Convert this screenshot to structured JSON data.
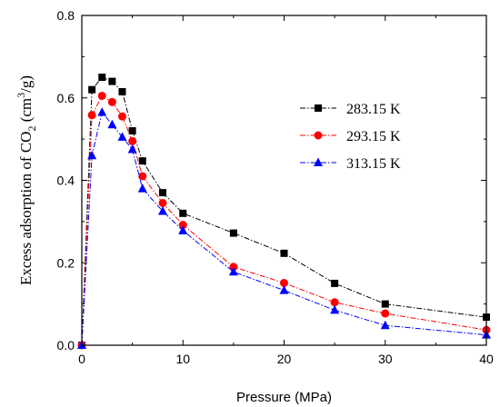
{
  "chart_data": {
    "type": "line",
    "xlabel": "Pressure (MPa)",
    "ylabel": "Excess adsorption of CO2 (cm3/g)",
    "ylabel_parts": {
      "prefix": "Excess adsorption of CO",
      "sub": "2",
      "mid": " (cm",
      "sup": "3",
      "suffix": "/g)"
    },
    "xlim": [
      0,
      40
    ],
    "ylim": [
      0.0,
      0.8
    ],
    "xticks": [
      0,
      10,
      20,
      30,
      40
    ],
    "yticks": [
      0.0,
      0.2,
      0.4,
      0.6,
      0.8
    ],
    "ytick_labels": [
      "0.0",
      "0.2",
      "0.4",
      "0.6",
      "0.8"
    ],
    "xtick_labels": [
      "0",
      "10",
      "20",
      "30",
      "40"
    ],
    "legend_position": "upper-right",
    "grid": false,
    "x": [
      0,
      1,
      2,
      3,
      4,
      5,
      6,
      8,
      10,
      15,
      20,
      25,
      30,
      40
    ],
    "series": [
      {
        "name": "283.15 K",
        "color": "#000000",
        "marker": "square",
        "values": [
          0.0,
          0.62,
          0.65,
          0.64,
          0.615,
          0.52,
          0.447,
          0.37,
          0.32,
          0.272,
          0.223,
          0.15,
          0.1,
          0.068
        ]
      },
      {
        "name": "293.15 K",
        "color": "#ff0000",
        "marker": "circle",
        "values": [
          0.0,
          0.558,
          0.605,
          0.59,
          0.555,
          0.495,
          0.41,
          0.345,
          0.292,
          0.19,
          0.151,
          0.104,
          0.077,
          0.037
        ]
      },
      {
        "name": "313.15 K",
        "color": "#0000ff",
        "marker": "triangle",
        "values": [
          0.0,
          0.46,
          0.565,
          0.535,
          0.505,
          0.475,
          0.38,
          0.325,
          0.278,
          0.178,
          0.133,
          0.085,
          0.048,
          0.025
        ]
      }
    ]
  }
}
